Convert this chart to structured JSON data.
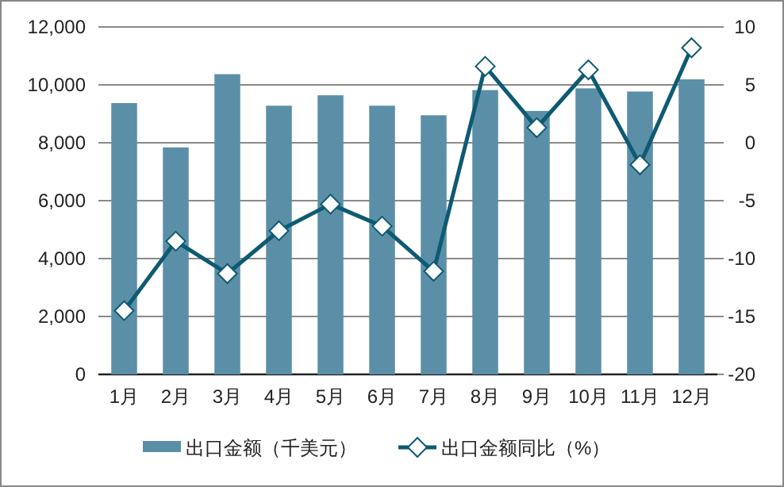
{
  "chart_data": {
    "type": "bar",
    "categories": [
      "1月",
      "2月",
      "3月",
      "4月",
      "5月",
      "6月",
      "7月",
      "8月",
      "9月",
      "10月",
      "11月",
      "12月"
    ],
    "series": [
      {
        "name": "出口金额（千美元）",
        "color": "#5b8fa8",
        "values": [
          9370,
          7840,
          10370,
          9280,
          9640,
          9280,
          8950,
          9820,
          9100,
          9880,
          9770,
          10190
        ]
      },
      {
        "name": "出口金额同比（%）",
        "type": "line",
        "axis": "y2",
        "color": "#0e5a73",
        "marker": "diamond",
        "values": [
          -14.5,
          -8.5,
          -11.3,
          -7.6,
          -5.3,
          -7.2,
          -11.1,
          6.6,
          1.3,
          6.3,
          -1.9,
          8.2
        ]
      }
    ],
    "ylim": [
      0,
      12000
    ],
    "yticks": [
      0,
      {
        "value": 2000,
        "label": "2,000"
      },
      {
        "value": 4000,
        "label": "4,000"
      },
      {
        "value": 6000,
        "label": "6,000"
      },
      {
        "value": 8000,
        "label": "8,000"
      },
      {
        "value": 10000,
        "label": "10,000"
      },
      {
        "value": 12000,
        "label": "12,000"
      }
    ],
    "y2lim": [
      -20,
      10
    ],
    "y2ticks": [
      -20,
      -15,
      -10,
      -5,
      0,
      5,
      10
    ],
    "grid": "y",
    "legend": "bottom"
  }
}
